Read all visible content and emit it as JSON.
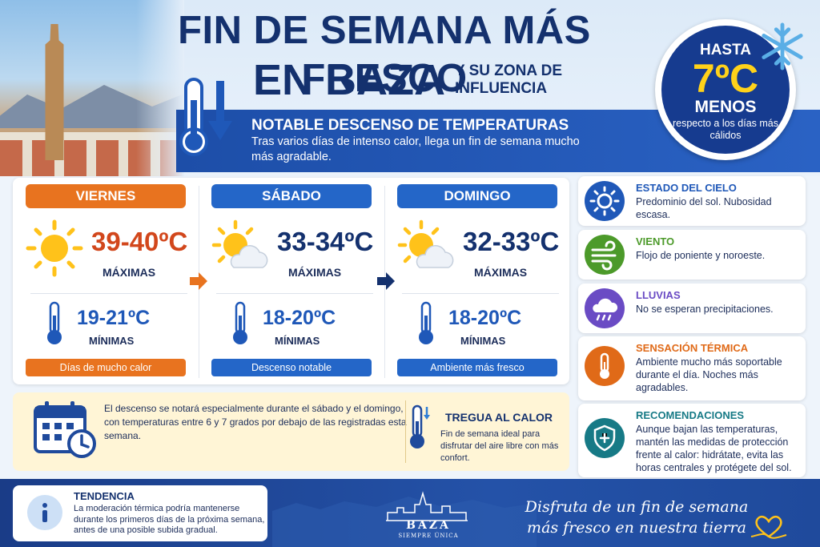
{
  "header": {
    "title_line1": "FIN DE SEMANA MÁS FRESCO",
    "title_line2": "EN BAZA",
    "title_suffix": "Y SU ZONA DE INFLUENCIA",
    "band_title": "NOTABLE DESCENSO DE TEMPERATURAS",
    "band_text": "Tras varios días de intenso calor, llega un fin de semana mucho más agradable."
  },
  "badge": {
    "up_to": "HASTA",
    "temp": "7ºC",
    "less": "MENOS",
    "note": "respecto a los días más cálidos"
  },
  "days": [
    {
      "name": "VIERNES",
      "max": "39-40ºC",
      "max_label": "MÁXIMAS",
      "min": "19-21ºC",
      "min_label": "MÍNIMAS",
      "footer": "Días de mucho calor",
      "color": "#e8731f",
      "max_color": "#d2471c",
      "icon": "sun-icon"
    },
    {
      "name": "SÁBADO",
      "max": "33-34ºC",
      "max_label": "MÁXIMAS",
      "min": "18-20ºC",
      "min_label": "MÍNIMAS",
      "footer": "Descenso notable",
      "color": "#2466c8",
      "max_color": "#14316e",
      "icon": "sun-cloud-icon"
    },
    {
      "name": "DOMINGO",
      "max": "32-33ºC",
      "max_label": "MÁXIMAS",
      "min": "18-20ºC",
      "min_label": "MÍNIMAS",
      "footer": "Ambiente más fresco",
      "color": "#2466c8",
      "max_color": "#14316e",
      "icon": "sun-cloud-icon"
    }
  ],
  "info": {
    "text": "El descenso se notará especialmente durante el sábado y el domingo, con temperaturas entre 6 y 7 grados por debajo de las registradas esta semana.",
    "tregua_title": "TREGUA AL CALOR",
    "tregua_text": "Fin de semana ideal para disfrutar del aire libre con más confort."
  },
  "cards": [
    {
      "title": "ESTADO DEL CIELO",
      "text": "Predominio del sol. Nubosidad escasa.",
      "color": "#1f58b8",
      "icon": "sun-icon"
    },
    {
      "title": "VIENTO",
      "text": "Flojo de poniente y noroeste.",
      "color": "#4c9a2a",
      "icon": "wind-icon"
    },
    {
      "title": "LLUVIAS",
      "text": "No se esperan precipitaciones.",
      "color": "#6a4bc4",
      "icon": "rain-cloud-icon"
    },
    {
      "title": "SENSACIÓN TÉRMICA",
      "text": "Ambiente mucho más soportable durante el día. Noches más agradables.",
      "color": "#e06a18",
      "icon": "thermometer-icon"
    },
    {
      "title": "RECOMENDACIONES",
      "text": "Aunque bajan las temperaturas, mantén las medidas de protección frente al calor: hidrátate, evita las horas centrales y protégete del sol.",
      "color": "#177a86",
      "icon": "shield-icon"
    }
  ],
  "footer": {
    "trend_title": "TENDENCIA",
    "trend_text": "La moderación térmica podría mantenerse durante los primeros días de la próxima semana, antes de una posible subida gradual.",
    "logo_name": "BAZA",
    "logo_sub": "SIEMPRE ÚNICA",
    "slogan": "Disfruta de un fin de semana más fresco en nuestra tierra"
  }
}
